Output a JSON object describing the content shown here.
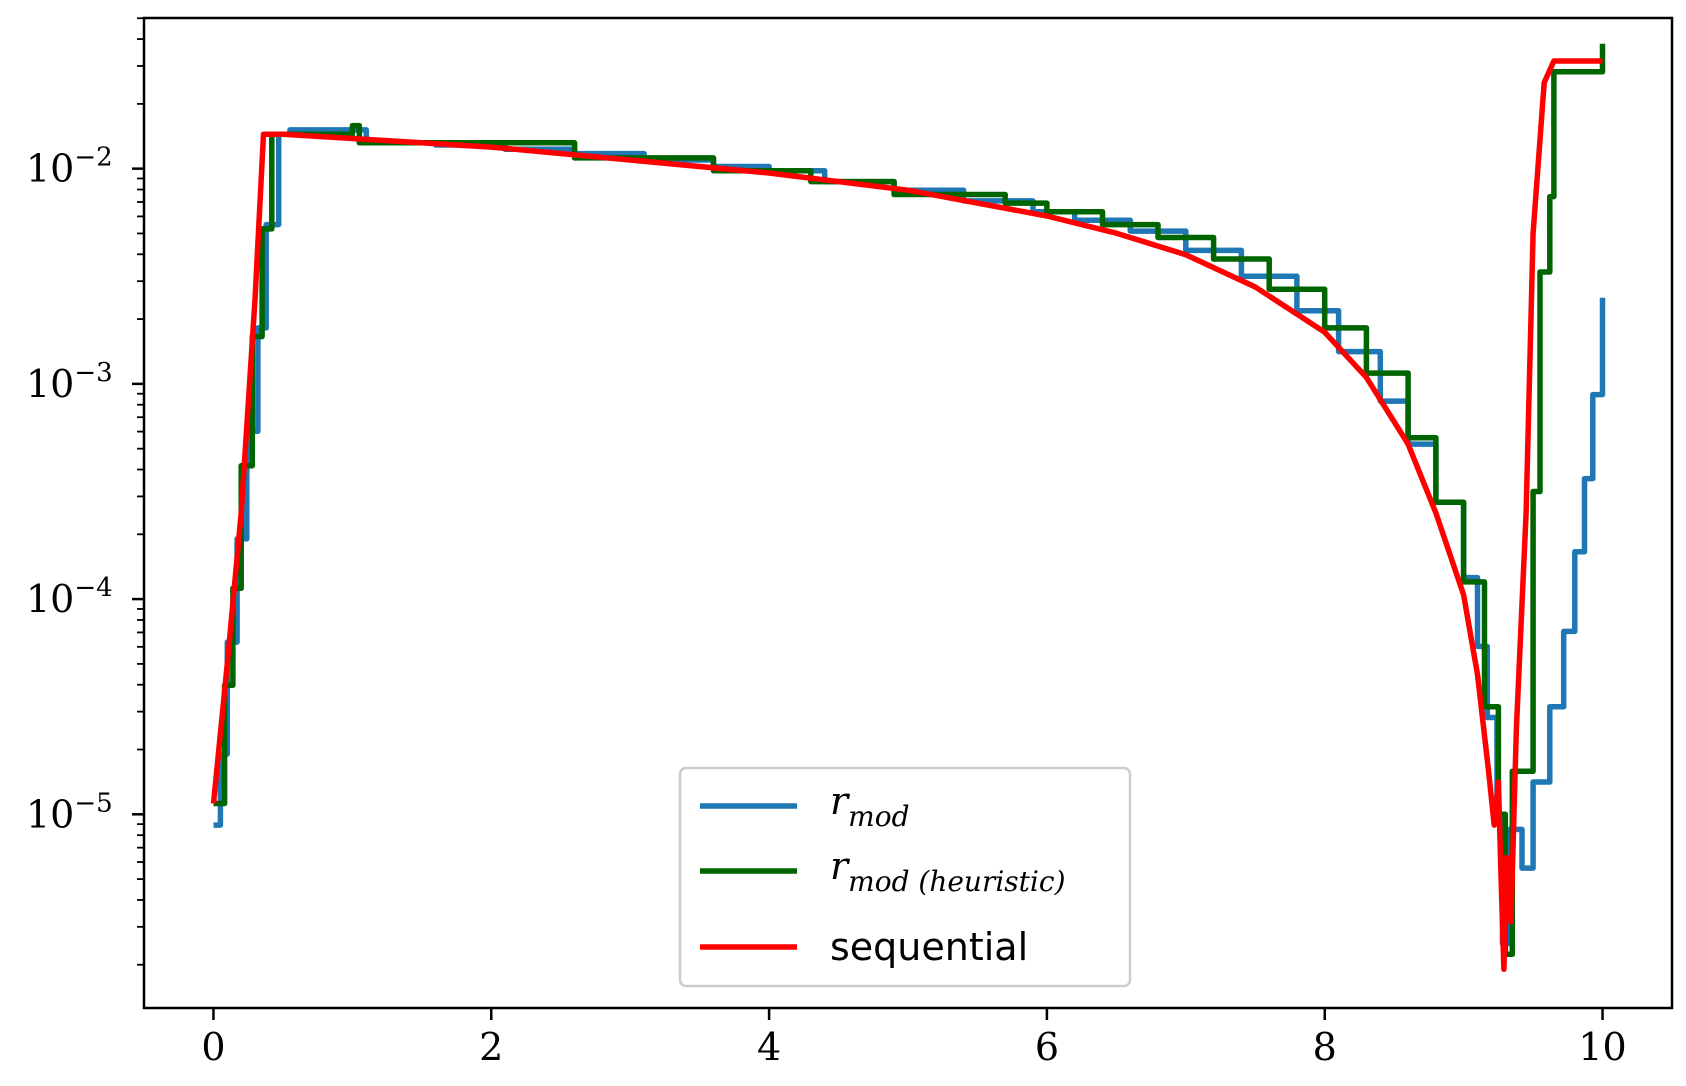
{
  "chart_data": {
    "type": "line",
    "title": "",
    "xlabel": "",
    "ylabel": "",
    "yscale": "log",
    "xlim": [
      -0.5,
      10.5
    ],
    "ylim_log10": [
      -5.9,
      -1.3
    ],
    "grid": false,
    "legend_position": "lower-center",
    "x_ticks": [
      {
        "value": 0,
        "label": "0"
      },
      {
        "value": 2,
        "label": "2"
      },
      {
        "value": 4,
        "label": "4"
      },
      {
        "value": 6,
        "label": "6"
      },
      {
        "value": 8,
        "label": "8"
      },
      {
        "value": 10,
        "label": "10"
      }
    ],
    "y_ticks": [
      {
        "exp": -2,
        "base": "10",
        "sup": "−2"
      },
      {
        "exp": -3,
        "base": "10",
        "sup": "−3"
      },
      {
        "exp": -4,
        "base": "10",
        "sup": "−4"
      },
      {
        "exp": -5,
        "base": "10",
        "sup": "−5"
      }
    ],
    "series": [
      {
        "name": "r_mod",
        "legend_main": "r",
        "legend_sub": "mod",
        "color": "#1f77b4",
        "step": true,
        "points": [
          [
            0,
            -5.05
          ],
          [
            0.05,
            -4.72
          ],
          [
            0.1,
            -4.2
          ],
          [
            0.17,
            -3.72
          ],
          [
            0.24,
            -3.22
          ],
          [
            0.32,
            -2.74
          ],
          [
            0.38,
            -2.26
          ],
          [
            0.47,
            -1.84
          ],
          [
            0.55,
            -1.82
          ],
          [
            1.1,
            -1.88
          ],
          [
            1.6,
            -1.89
          ],
          [
            2.1,
            -1.91
          ],
          [
            2.6,
            -1.93
          ],
          [
            3.1,
            -1.96
          ],
          [
            3.6,
            -1.99
          ],
          [
            4.0,
            -2.01
          ],
          [
            4.4,
            -2.06
          ],
          [
            4.9,
            -2.1
          ],
          [
            5.4,
            -2.15
          ],
          [
            5.9,
            -2.2
          ],
          [
            6.2,
            -2.24
          ],
          [
            6.6,
            -2.29
          ],
          [
            7.0,
            -2.38
          ],
          [
            7.4,
            -2.5
          ],
          [
            7.8,
            -2.66
          ],
          [
            8.1,
            -2.85
          ],
          [
            8.4,
            -3.08
          ],
          [
            8.6,
            -3.28
          ],
          [
            8.8,
            -3.55
          ],
          [
            9.0,
            -3.9
          ],
          [
            9.1,
            -4.22
          ],
          [
            9.17,
            -4.55
          ],
          [
            9.24,
            -5.0
          ],
          [
            9.28,
            -5.6
          ],
          [
            9.33,
            -5.07
          ],
          [
            9.42,
            -5.25
          ],
          [
            9.5,
            -4.85
          ],
          [
            9.62,
            -4.5
          ],
          [
            9.72,
            -4.15
          ],
          [
            9.8,
            -3.78
          ],
          [
            9.87,
            -3.44
          ],
          [
            9.93,
            -3.05
          ],
          [
            10.0,
            -2.6
          ]
        ]
      },
      {
        "name": "r_mod (heuristic)",
        "legend_main": "r",
        "legend_sub": "mod (heuristic)",
        "color": "#006400",
        "step": true,
        "points": [
          [
            0,
            -4.95
          ],
          [
            0.08,
            -4.4
          ],
          [
            0.14,
            -3.95
          ],
          [
            0.2,
            -3.38
          ],
          [
            0.28,
            -2.78
          ],
          [
            0.35,
            -2.28
          ],
          [
            0.42,
            -1.84
          ],
          [
            1.0,
            -1.8
          ],
          [
            1.05,
            -1.88
          ],
          [
            2.6,
            -1.9
          ],
          [
            2.6,
            -1.95
          ],
          [
            3.6,
            -1.96
          ],
          [
            3.6,
            -2.01
          ],
          [
            4.3,
            -2.03
          ],
          [
            4.3,
            -2.06
          ],
          [
            4.9,
            -2.06
          ],
          [
            4.9,
            -2.12
          ],
          [
            5.4,
            -2.12
          ],
          [
            5.7,
            -2.16
          ],
          [
            6.0,
            -2.2
          ],
          [
            6.4,
            -2.26
          ],
          [
            6.8,
            -2.32
          ],
          [
            7.2,
            -2.42
          ],
          [
            7.6,
            -2.56
          ],
          [
            8.0,
            -2.74
          ],
          [
            8.3,
            -2.95
          ],
          [
            8.6,
            -3.25
          ],
          [
            8.8,
            -3.55
          ],
          [
            9.0,
            -3.92
          ],
          [
            9.15,
            -4.5
          ],
          [
            9.25,
            -5.0
          ],
          [
            9.3,
            -5.65
          ],
          [
            9.35,
            -4.8
          ],
          [
            9.5,
            -3.5
          ],
          [
            9.55,
            -2.48
          ],
          [
            9.62,
            -2.13
          ],
          [
            9.65,
            -1.55
          ],
          [
            10.0,
            -1.42
          ]
        ]
      },
      {
        "name": "sequential",
        "legend_main": "sequential",
        "legend_sub": "",
        "color": "#ff0000",
        "step": false,
        "points": [
          [
            0,
            -4.95
          ],
          [
            0.1,
            -4.3
          ],
          [
            0.2,
            -3.6
          ],
          [
            0.3,
            -2.6
          ],
          [
            0.36,
            -1.84
          ],
          [
            0.5,
            -1.84
          ],
          [
            1.0,
            -1.86
          ],
          [
            2.0,
            -1.9
          ],
          [
            3.0,
            -1.96
          ],
          [
            4.0,
            -2.02
          ],
          [
            5.0,
            -2.1
          ],
          [
            6.0,
            -2.22
          ],
          [
            6.5,
            -2.3
          ],
          [
            7.0,
            -2.4
          ],
          [
            7.5,
            -2.55
          ],
          [
            8.0,
            -2.76
          ],
          [
            8.3,
            -2.97
          ],
          [
            8.6,
            -3.28
          ],
          [
            8.8,
            -3.6
          ],
          [
            9.0,
            -3.98
          ],
          [
            9.1,
            -4.35
          ],
          [
            9.18,
            -4.8
          ],
          [
            9.22,
            -5.05
          ],
          [
            9.25,
            -4.85
          ],
          [
            9.27,
            -5.3
          ],
          [
            9.29,
            -5.72
          ],
          [
            9.31,
            -5.2
          ],
          [
            9.34,
            -5.5
          ],
          [
            9.38,
            -4.6
          ],
          [
            9.45,
            -3.6
          ],
          [
            9.5,
            -2.3
          ],
          [
            9.58,
            -1.6
          ],
          [
            9.65,
            -1.5
          ],
          [
            10.0,
            -1.5
          ]
        ]
      }
    ]
  }
}
